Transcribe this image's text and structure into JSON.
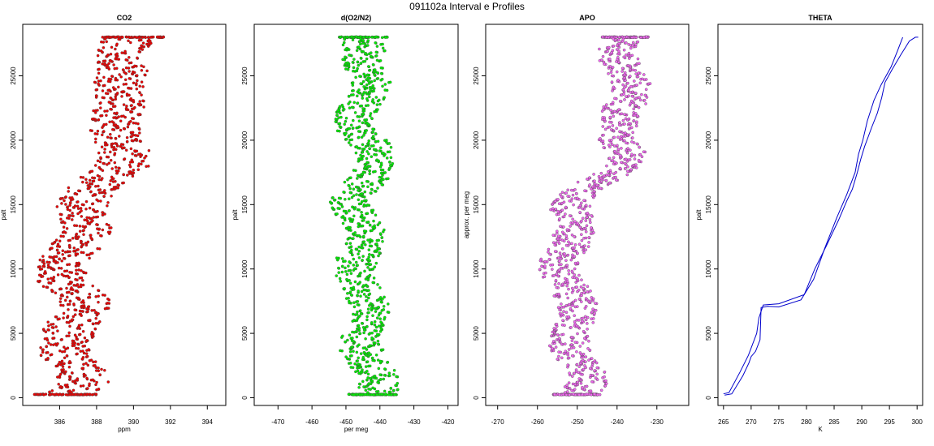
{
  "figure": {
    "title": "091102a   Interval e Profiles"
  },
  "chart_data": [
    {
      "type": "scatter",
      "title": "CO2",
      "xlabel": "ppm",
      "ylabel": "palt",
      "xlim": [
        384,
        395
      ],
      "ylim": [
        -600,
        29000
      ],
      "xticks": [
        386,
        388,
        390,
        392,
        394
      ],
      "yticks": [
        0,
        5000,
        10000,
        15000,
        20000,
        25000
      ],
      "color": "#ee0000",
      "grid": false,
      "profile": [
        [
          386.3,
          300
        ],
        [
          386.8,
          1500
        ],
        [
          386.6,
          3000
        ],
        [
          386.9,
          4500
        ],
        [
          386.6,
          6000
        ],
        [
          386.9,
          7500
        ],
        [
          386.5,
          9000
        ],
        [
          386.7,
          10500
        ],
        [
          386.6,
          12000
        ],
        [
          387.1,
          13500
        ],
        [
          387.7,
          15000
        ],
        [
          388.3,
          16500
        ],
        [
          388.8,
          18000
        ],
        [
          389.2,
          19500
        ],
        [
          389.6,
          21000
        ],
        [
          389.3,
          22500
        ],
        [
          388.5,
          24000
        ],
        [
          389.4,
          25500
        ],
        [
          390.0,
          27000
        ],
        [
          390.0,
          28000
        ]
      ],
      "spread": 1.4
    },
    {
      "type": "scatter",
      "title": "d(O2/N2)",
      "xlabel": "per meg",
      "ylabel": "palt",
      "xlim": [
        -477,
        -417
      ],
      "ylim": [
        -600,
        29000
      ],
      "xticks": [
        -470,
        -460,
        -450,
        -440,
        -430,
        -420
      ],
      "yticks": [
        0,
        5000,
        10000,
        15000,
        20000,
        25000
      ],
      "color": "#00ee00",
      "grid": false,
      "profile": [
        [
          -442,
          300
        ],
        [
          -443,
          1500
        ],
        [
          -444,
          3000
        ],
        [
          -443,
          4500
        ],
        [
          -445,
          6000
        ],
        [
          -446,
          7500
        ],
        [
          -445,
          9000
        ],
        [
          -445,
          10500
        ],
        [
          -446,
          12000
        ],
        [
          -447,
          13500
        ],
        [
          -447,
          15000
        ],
        [
          -444,
          16500
        ],
        [
          -443,
          18000
        ],
        [
          -443,
          19500
        ],
        [
          -445,
          21000
        ],
        [
          -446,
          22500
        ],
        [
          -445,
          24000
        ],
        [
          -444,
          25500
        ],
        [
          -442,
          27000
        ],
        [
          -445,
          28000
        ]
      ],
      "spread": 6
    },
    {
      "type": "scatter",
      "title": "APO",
      "xlabel": "",
      "ylabel": "approx. per meg",
      "xlim": [
        -273,
        -222
      ],
      "ylim": [
        -600,
        29000
      ],
      "xticks": [
        -270,
        -260,
        -250,
        -240,
        -230
      ],
      "yticks": [
        0,
        5000,
        10000,
        15000,
        20000,
        25000
      ],
      "color": "#ee66ee",
      "grid": false,
      "profile": [
        [
          -250,
          300
        ],
        [
          -249,
          1500
        ],
        [
          -250,
          3000
        ],
        [
          -250,
          4500
        ],
        [
          -251,
          6000
        ],
        [
          -252,
          7500
        ],
        [
          -252,
          9000
        ],
        [
          -253,
          10500
        ],
        [
          -253,
          12000
        ],
        [
          -252,
          13500
        ],
        [
          -250,
          15000
        ],
        [
          -246,
          16500
        ],
        [
          -240,
          18000
        ],
        [
          -239,
          19500
        ],
        [
          -238,
          21000
        ],
        [
          -238,
          22500
        ],
        [
          -239,
          24000
        ],
        [
          -238,
          25500
        ],
        [
          -238,
          27000
        ],
        [
          -238,
          28000
        ]
      ],
      "spread": 5
    },
    {
      "type": "line",
      "title": "THETA",
      "xlabel": "K",
      "ylabel": "palt",
      "xlim": [
        264,
        301
      ],
      "ylim": [
        -600,
        29000
      ],
      "xticks": [
        265,
        270,
        275,
        280,
        285,
        290,
        295,
        300
      ],
      "yticks": [
        0,
        5000,
        10000,
        15000,
        20000,
        25000
      ],
      "color": "#0000cc",
      "grid": false,
      "series": [
        {
          "x": [
            265.2,
            266.5,
            268.5,
            269.6,
            270.0,
            270.8,
            271.6,
            271.8,
            273.0,
            275.0,
            279.0,
            281.3,
            283.3,
            285.5,
            287.3,
            288.8,
            289.4,
            290.2,
            291.0,
            292.2,
            293.5,
            295.3,
            296.5,
            297.4
          ],
          "y": [
            200,
            300,
            1700,
            2700,
            3200,
            3600,
            4500,
            7000,
            7100,
            7050,
            7600,
            9200,
            11600,
            14000,
            15800,
            17500,
            18900,
            20000,
            21500,
            23100,
            24300,
            25700,
            27000,
            28000
          ]
        },
        {
          "x": [
            265.0,
            266.0,
            268.0,
            269.5,
            271.0,
            271.4,
            272.2,
            275.0,
            279.6,
            281.5,
            283.6,
            285.8,
            287.3,
            288.3,
            289.2,
            289.8,
            290.5,
            291.8,
            292.8,
            293.6,
            294.2,
            295.5,
            297.0,
            298.6,
            299.7,
            300.2
          ],
          "y": [
            300,
            400,
            2000,
            3300,
            5000,
            6200,
            7200,
            7300,
            8000,
            10000,
            11800,
            13800,
            15300,
            16200,
            17500,
            18500,
            19500,
            21000,
            22100,
            23300,
            24500,
            25500,
            26600,
            27700,
            28000,
            28000
          ]
        }
      ]
    }
  ]
}
